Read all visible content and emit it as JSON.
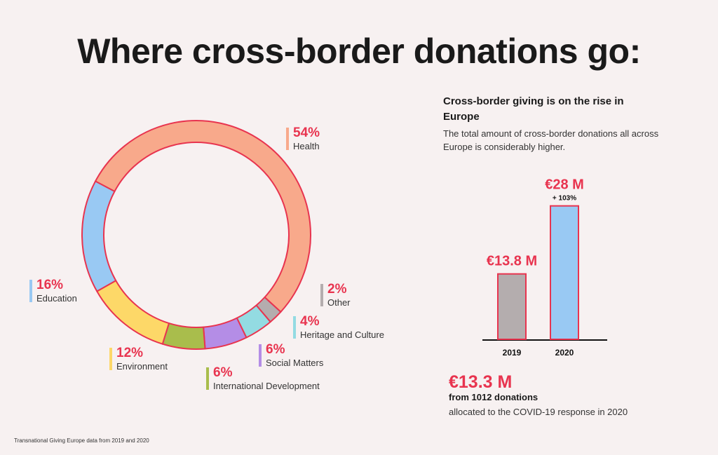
{
  "page": {
    "title": "Where cross-border donations go:",
    "source_note": "Transnational Giving Europe data from 2019 and 2020"
  },
  "colors": {
    "accent": "#e8344f",
    "health": "#f8a98b",
    "education": "#99c9f3",
    "environment": "#fdd868",
    "international_development": "#a9bd4c",
    "social_matters": "#b48de6",
    "heritage_and_culture": "#93dbe2",
    "other": "#b4adae",
    "bar_2019": "#b4adae",
    "bar_2020": "#99c9f3"
  },
  "chart_data": [
    {
      "type": "pie",
      "title": "",
      "categories": [
        "Health",
        "Other",
        "Heritage and Culture",
        "Social Matters",
        "International Development",
        "Environment",
        "Education"
      ],
      "values": [
        54,
        2,
        4,
        6,
        6,
        12,
        16
      ],
      "value_labels": [
        "54%",
        "2%",
        "4%",
        "6%",
        "6%",
        "12%",
        "16%"
      ],
      "colors": [
        "#f8a98b",
        "#b4adae",
        "#93dbe2",
        "#b48de6",
        "#a9bd4c",
        "#fdd868",
        "#99c9f3"
      ],
      "legend": "labels around ring"
    },
    {
      "type": "bar",
      "title": "Cross-border giving is on the rise in Europe",
      "subtitle": "The total amount of cross-border donations all across Europe is considerably higher.",
      "categories": [
        "2019",
        "2020"
      ],
      "values": [
        13.8,
        28
      ],
      "value_labels": [
        "€13.8 M",
        "€28 M"
      ],
      "annotations": [
        "",
        "+ 103%"
      ],
      "colors": [
        "#b4adae",
        "#99c9f3"
      ],
      "ylim": [
        0,
        30
      ]
    }
  ],
  "covid": {
    "amount": "€13.3 M",
    "count": "from 1012 donations",
    "desc": "allocated to the COVID-19 response in 2020"
  }
}
